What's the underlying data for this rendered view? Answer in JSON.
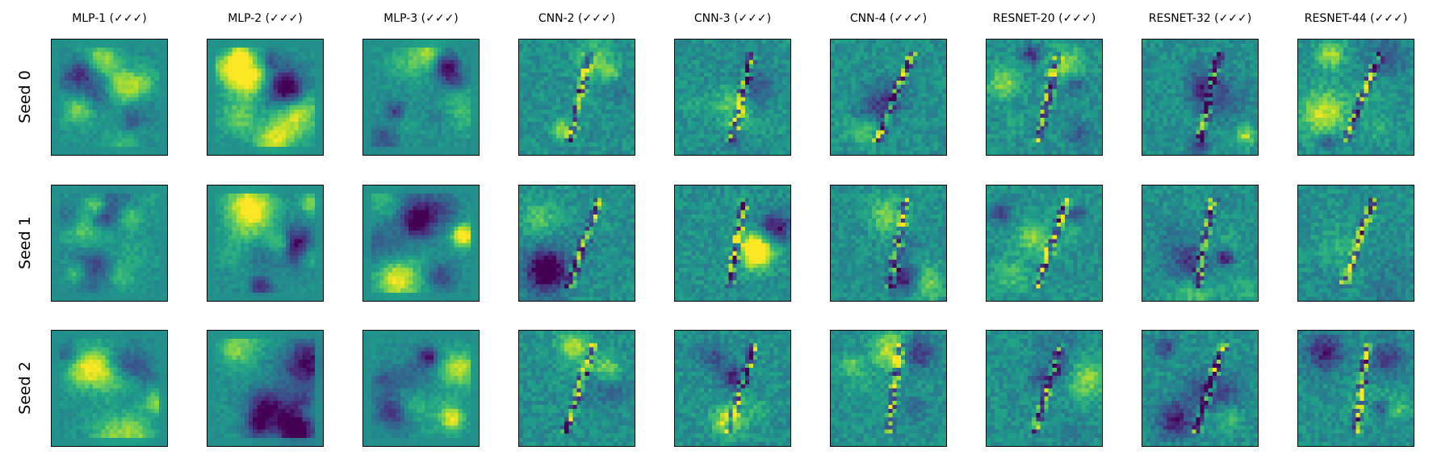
{
  "columns": [
    "MLP-1 (✓✓✓)",
    "MLP-2 (✓✓✓)",
    "MLP-3 (✓✓✓)",
    "CNN-2 (✓✓✓)",
    "CNN-3 (✓✓✓)",
    "CNN-4 (✓✓✓)",
    "RESNET-20 (✓✓✓)",
    "RESNET-32 (✓✓✓)",
    "RESNET-44 (✓✓✓)"
  ],
  "rows": [
    "Seed 0",
    "Seed 1",
    "Seed 2"
  ],
  "colormap": "viridis",
  "colors": {
    "frame": "#000000",
    "background": "#ffffff",
    "low": "#440154",
    "mid": "#21918c",
    "high": "#fde725"
  }
}
